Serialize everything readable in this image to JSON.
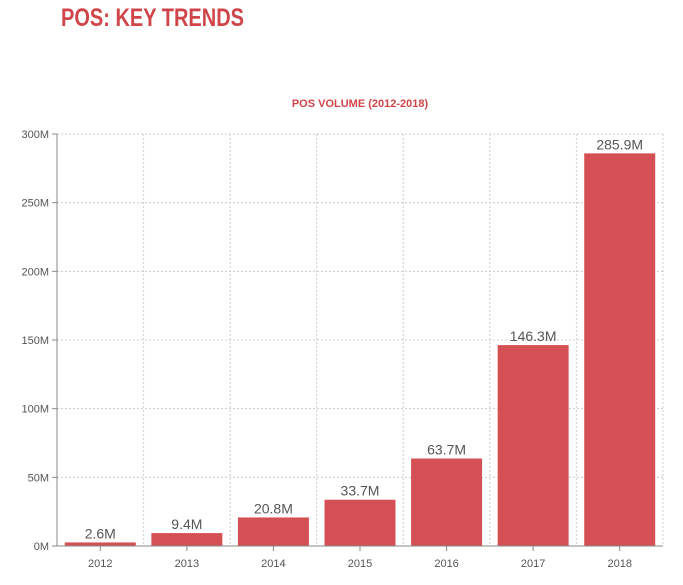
{
  "page": {
    "title": "POS: KEY TRENDS"
  },
  "colors": {
    "accent": "#d0454a",
    "bar": "#d45054",
    "grid": "#cccccc",
    "axis": "#888888",
    "text": "#555555"
  },
  "chart_data": {
    "type": "bar",
    "title": "POS VOLUME (2012-2018)",
    "xlabel": "",
    "ylabel": "",
    "categories": [
      "2012",
      "2013",
      "2014",
      "2015",
      "2016",
      "2017",
      "2018"
    ],
    "values": [
      2.6,
      9.4,
      20.8,
      33.7,
      63.7,
      146.3,
      285.9
    ],
    "value_labels": [
      "2.6M",
      "9.4M",
      "20.8M",
      "33.7M",
      "63.7M",
      "146.3M",
      "285.9M"
    ],
    "unit": "M",
    "ylim": [
      0,
      300
    ],
    "yticks": [
      0,
      50,
      100,
      150,
      200,
      250,
      300
    ],
    "ytick_labels": [
      "0M",
      "50M",
      "100M",
      "150M",
      "200M",
      "250M",
      "300M"
    ],
    "grid": true
  }
}
